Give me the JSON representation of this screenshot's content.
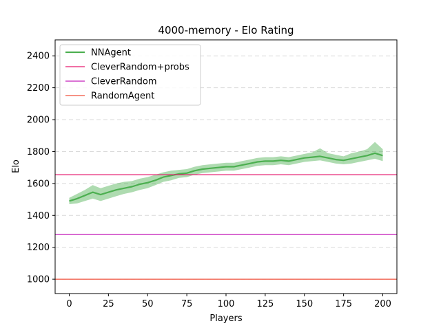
{
  "chart_data": {
    "type": "line",
    "title": "4000-memory - Elo Rating",
    "xlabel": "Players",
    "ylabel": "Elo",
    "xlim": [
      -9,
      209
    ],
    "ylim": [
      910,
      2500
    ],
    "xticks": [
      0,
      25,
      50,
      75,
      100,
      125,
      150,
      175,
      200
    ],
    "yticks": [
      1000,
      1200,
      1400,
      1600,
      1800,
      2000,
      2200,
      2400
    ],
    "grid": "y-dashed",
    "legend_position": "top-left",
    "series": [
      {
        "name": "NNAgent",
        "kind": "line-with-band",
        "color": "#4caf50",
        "x": [
          0,
          5,
          10,
          15,
          20,
          25,
          30,
          35,
          40,
          45,
          50,
          55,
          60,
          65,
          70,
          75,
          80,
          85,
          90,
          95,
          100,
          105,
          110,
          115,
          120,
          125,
          130,
          135,
          140,
          145,
          150,
          155,
          160,
          165,
          170,
          175,
          180,
          185,
          190,
          195,
          200
        ],
        "y": [
          1490,
          1505,
          1525,
          1545,
          1530,
          1545,
          1560,
          1570,
          1580,
          1595,
          1605,
          1620,
          1640,
          1650,
          1660,
          1665,
          1680,
          1690,
          1695,
          1700,
          1705,
          1705,
          1715,
          1725,
          1735,
          1740,
          1740,
          1745,
          1740,
          1750,
          1760,
          1765,
          1770,
          1760,
          1750,
          1745,
          1755,
          1765,
          1775,
          1790,
          1775
        ],
        "lower": [
          1470,
          1475,
          1490,
          1505,
          1490,
          1505,
          1520,
          1535,
          1545,
          1560,
          1570,
          1590,
          1610,
          1620,
          1635,
          1640,
          1655,
          1665,
          1670,
          1675,
          1680,
          1680,
          1690,
          1700,
          1710,
          1715,
          1715,
          1720,
          1715,
          1725,
          1735,
          1740,
          1745,
          1735,
          1725,
          1720,
          1725,
          1735,
          1745,
          1755,
          1740
        ],
        "upper": [
          1510,
          1535,
          1560,
          1590,
          1570,
          1585,
          1600,
          1610,
          1615,
          1630,
          1640,
          1655,
          1670,
          1680,
          1685,
          1690,
          1705,
          1715,
          1720,
          1725,
          1730,
          1730,
          1740,
          1750,
          1760,
          1765,
          1765,
          1770,
          1765,
          1775,
          1785,
          1795,
          1820,
          1790,
          1780,
          1770,
          1790,
          1800,
          1815,
          1860,
          1815
        ]
      },
      {
        "name": "CleverRandom+probs",
        "kind": "hline",
        "color": "#e6196e",
        "y": 1655
      },
      {
        "name": "CleverRandom",
        "kind": "hline",
        "color": "#c41eba",
        "y": 1280
      },
      {
        "name": "RandomAgent",
        "kind": "hline",
        "color": "#f0503c",
        "y": 1000
      }
    ]
  }
}
